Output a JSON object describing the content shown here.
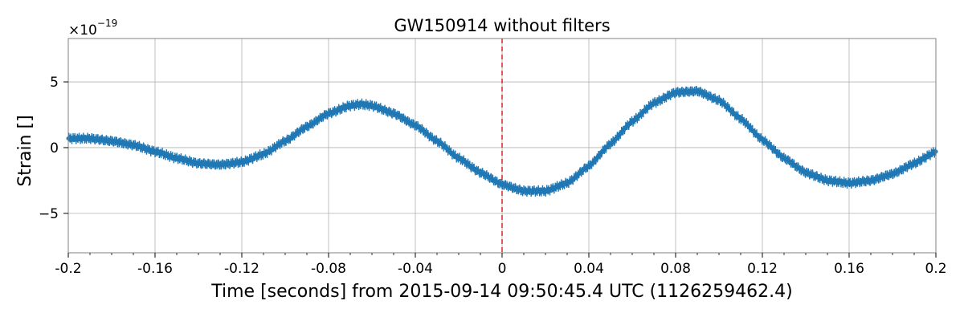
{
  "chart_data": {
    "type": "line",
    "title": "GW150914 without filters",
    "xlabel": "Time [seconds] from 2015-09-14 09:50:45.4 UTC (1126259462.4)",
    "ylabel": "Strain []",
    "y_offset_base": "×10",
    "y_offset_exponent": "−19",
    "xlim": [
      -0.2,
      0.2
    ],
    "ylim": [
      -8,
      8.3
    ],
    "y_scale_factor": 1e-19,
    "xticks": [
      -0.2,
      -0.16,
      -0.12,
      -0.08,
      -0.04,
      0,
      0.04,
      0.08,
      0.12,
      0.16,
      0.2
    ],
    "xtick_labels": [
      "-0.2",
      "-0.16",
      "-0.12",
      "-0.08",
      "-0.04",
      "0",
      "0.04",
      "0.08",
      "0.12",
      "0.16",
      "0.2"
    ],
    "yticks": [
      -5,
      0,
      5
    ],
    "ytick_labels": [
      "−5",
      "0",
      "5"
    ],
    "grid": true,
    "vline": {
      "x": 0,
      "color": "#d62728",
      "style": "dashed"
    },
    "series": [
      {
        "color": "#1f77b4",
        "x": [
          -0.2,
          -0.19,
          -0.18,
          -0.17,
          -0.16,
          -0.15,
          -0.14,
          -0.13,
          -0.12,
          -0.11,
          -0.1,
          -0.09,
          -0.08,
          -0.07,
          -0.065,
          -0.06,
          -0.05,
          -0.04,
          -0.03,
          -0.02,
          -0.01,
          0,
          0.01,
          0.02,
          0.03,
          0.04,
          0.05,
          0.06,
          0.07,
          0.08,
          0.09,
          0.1,
          0.11,
          0.12,
          0.13,
          0.14,
          0.15,
          0.16,
          0.17,
          0.18,
          0.19,
          0.2
        ],
        "y": [
          0.7,
          0.7,
          0.5,
          0.2,
          -0.3,
          -0.8,
          -1.2,
          -1.3,
          -1.1,
          -0.5,
          0.5,
          1.6,
          2.6,
          3.2,
          3.3,
          3.2,
          2.6,
          1.7,
          0.5,
          -0.8,
          -1.9,
          -2.8,
          -3.3,
          -3.3,
          -2.7,
          -1.4,
          0.3,
          2.0,
          3.4,
          4.2,
          4.3,
          3.6,
          2.2,
          0.6,
          -0.8,
          -1.9,
          -2.5,
          -2.7,
          -2.5,
          -2.0,
          -1.2,
          -0.3
        ]
      }
    ]
  },
  "colors": {
    "series": "#1f77b4",
    "vline": "#d62728",
    "grid": "#b0b0b0",
    "axes": "#808080"
  }
}
